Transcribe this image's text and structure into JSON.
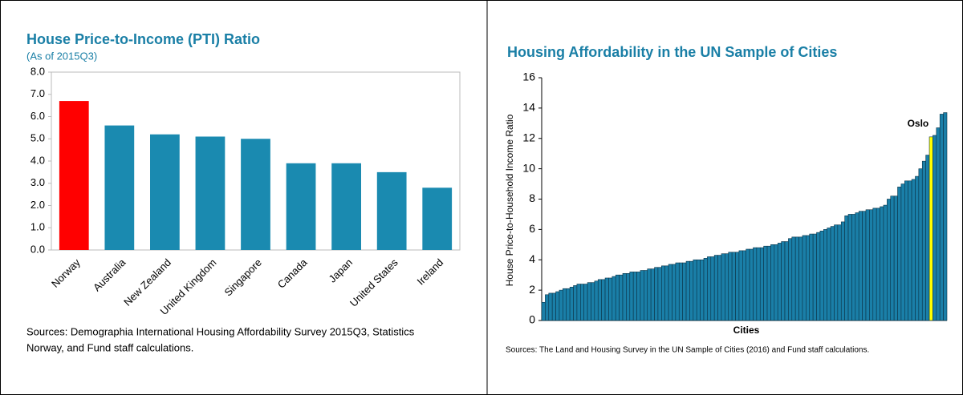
{
  "chart_data": [
    {
      "type": "bar",
      "title": "House Price-to-Income (PTI) Ratio",
      "subtitle": "(As of 2015Q3)",
      "categories": [
        "Norway",
        "Australia",
        "New Zealand",
        "United Kingdom",
        "Singapore",
        "Canada",
        "Japan",
        "United States",
        "Ireland"
      ],
      "values": [
        6.7,
        5.6,
        5.2,
        5.1,
        5.0,
        3.9,
        3.9,
        3.5,
        2.8
      ],
      "colors": [
        "#ff0000",
        "#1a8ab0",
        "#1a8ab0",
        "#1a8ab0",
        "#1a8ab0",
        "#1a8ab0",
        "#1a8ab0",
        "#1a8ab0",
        "#1a8ab0"
      ],
      "ylim": [
        0,
        8
      ],
      "yticks": [
        {
          "value": 0,
          "label": "0.0"
        },
        {
          "value": 1,
          "label": "1.0"
        },
        {
          "value": 2,
          "label": "2.0"
        },
        {
          "value": 3,
          "label": "3.0"
        },
        {
          "value": 4,
          "label": "4.0"
        },
        {
          "value": 5,
          "label": "5.0"
        },
        {
          "value": 6,
          "label": "6.0"
        },
        {
          "value": 7,
          "label": "7.0"
        },
        {
          "value": 8,
          "label": "8.0"
        }
      ],
      "grid": false,
      "source": [
        "Sources: Demographia International Housing Affordability Survey 2015Q3, Statistics",
        "Norway, and Fund staff calculations."
      ]
    },
    {
      "type": "bar",
      "title": "Housing Affordability in the UN Sample of Cities",
      "xlabel": "Cities",
      "ylabel": "House Price-to-Household Income Ratio",
      "categories": [
        null,
        null,
        null,
        null,
        null,
        null,
        null,
        null,
        null,
        null,
        null,
        null,
        null,
        null,
        null,
        null,
        null,
        null,
        null,
        null,
        null,
        null,
        null,
        null,
        null,
        null,
        null,
        null,
        null,
        null,
        null,
        null,
        null,
        null,
        null,
        null,
        null,
        null,
        null,
        null,
        null,
        null,
        null,
        null,
        null,
        null,
        null,
        null,
        null,
        null,
        null,
        null,
        null,
        null,
        null,
        null,
        null,
        null,
        null,
        null,
        null,
        null,
        null,
        null,
        null,
        null,
        null,
        null,
        null,
        null,
        null,
        null,
        null,
        null,
        null,
        null,
        null,
        null,
        null,
        null,
        null,
        null,
        null,
        null,
        null,
        null,
        null,
        null,
        null,
        null,
        null,
        null,
        null,
        null,
        null,
        null,
        null,
        null,
        null,
        null,
        null,
        null,
        null,
        null,
        null,
        null,
        null,
        null,
        null,
        null,
        "Oslo",
        null,
        null,
        null,
        null
      ],
      "values": [
        1.2,
        1.7,
        1.8,
        1.8,
        1.9,
        2.0,
        2.1,
        2.1,
        2.2,
        2.3,
        2.4,
        2.4,
        2.4,
        2.5,
        2.5,
        2.6,
        2.7,
        2.7,
        2.8,
        2.8,
        2.9,
        3.0,
        3.0,
        3.1,
        3.1,
        3.2,
        3.2,
        3.2,
        3.3,
        3.3,
        3.4,
        3.4,
        3.5,
        3.5,
        3.6,
        3.6,
        3.7,
        3.7,
        3.8,
        3.8,
        3.8,
        3.9,
        3.9,
        4.0,
        4.0,
        4.0,
        4.1,
        4.2,
        4.2,
        4.3,
        4.3,
        4.4,
        4.4,
        4.5,
        4.5,
        4.5,
        4.6,
        4.6,
        4.7,
        4.7,
        4.8,
        4.8,
        4.8,
        4.9,
        4.9,
        5.0,
        5.0,
        5.1,
        5.2,
        5.2,
        5.4,
        5.5,
        5.5,
        5.5,
        5.6,
        5.6,
        5.7,
        5.7,
        5.8,
        5.9,
        6.0,
        6.1,
        6.2,
        6.3,
        6.3,
        6.5,
        6.9,
        7.0,
        7.0,
        7.1,
        7.2,
        7.2,
        7.3,
        7.3,
        7.4,
        7.4,
        7.5,
        7.6,
        8.0,
        8.2,
        8.2,
        8.8,
        9.0,
        9.2,
        9.2,
        9.3,
        9.5,
        10.0,
        10.5,
        10.9,
        12.1,
        12.2,
        12.7,
        13.6,
        13.7
      ],
      "color": "#1a7fa8",
      "highlight_color": "#ffff00",
      "ylim": [
        0,
        16
      ],
      "yticks": [
        0,
        2,
        4,
        6,
        8,
        10,
        12,
        14,
        16
      ],
      "grid": false,
      "source": [
        "Sources: The Land and Housing Survey in the UN Sample of Cities (2016) and Fund staff calculations."
      ]
    }
  ]
}
